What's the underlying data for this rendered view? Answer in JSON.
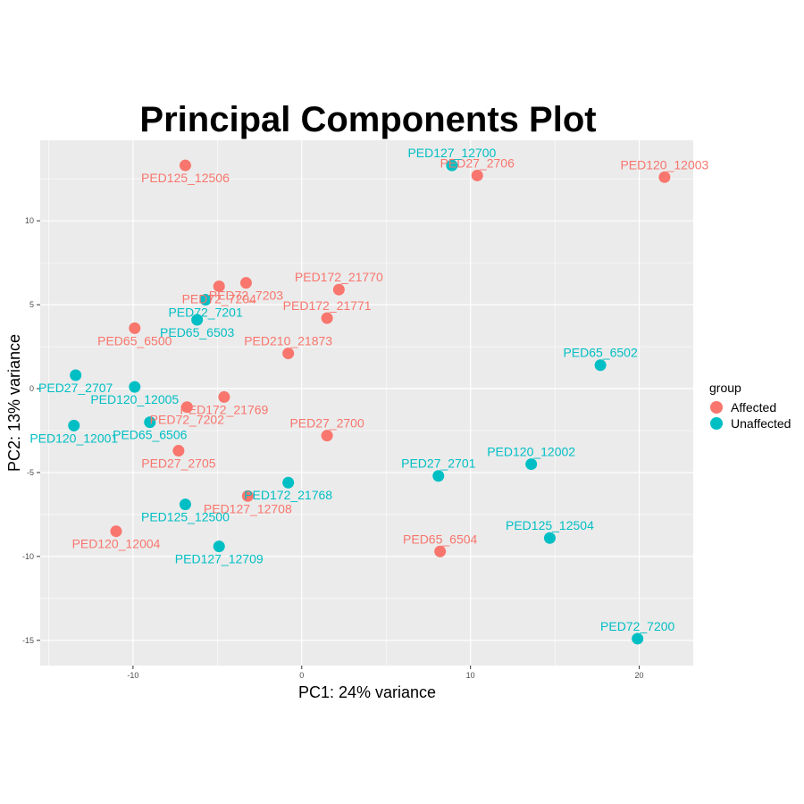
{
  "chart_data": {
    "type": "scatter",
    "title": "Principal Components Plot",
    "xlabel": "PC1: 24% variance",
    "ylabel": "PC2: 13% variance",
    "xlim": [
      -15.5,
      23.2
    ],
    "ylim": [
      -16.5,
      14.8
    ],
    "x_ticks": [
      -10,
      0,
      10,
      20
    ],
    "y_ticks": [
      -15,
      -10,
      -5,
      0,
      5,
      10
    ],
    "grid": true,
    "legend_position": "right",
    "legend": {
      "title": "group",
      "entries": [
        {
          "name": "Affected",
          "color": "#F8766D"
        },
        {
          "name": "Unaffected",
          "color": "#00BFC4"
        }
      ]
    },
    "series": [
      {
        "name": "Affected",
        "color": "#F8766D",
        "points": [
          {
            "label": "PED125_12506",
            "x": -6.9,
            "y": 13.3
          },
          {
            "label": "PED27_2706",
            "x": 10.4,
            "y": 12.7
          },
          {
            "label": "PED120_12003",
            "x": 21.5,
            "y": 12.6
          },
          {
            "label": "PED72_7203",
            "x": -3.3,
            "y": 6.3
          },
          {
            "label": "PED72_7204",
            "x": -4.9,
            "y": 6.1
          },
          {
            "label": "PED172_21770",
            "x": 2.2,
            "y": 5.9
          },
          {
            "label": "PED172_21771",
            "x": 1.5,
            "y": 4.2
          },
          {
            "label": "PED65_6500",
            "x": -9.9,
            "y": 3.6
          },
          {
            "label": "PED210_21873",
            "x": -0.8,
            "y": 2.1
          },
          {
            "label": "PED172_21769",
            "x": -4.6,
            "y": -0.5
          },
          {
            "label": "PED72_7202",
            "x": -6.8,
            "y": -1.1
          },
          {
            "label": "PED27_2700",
            "x": 1.5,
            "y": -2.8
          },
          {
            "label": "PED27_2705",
            "x": -7.3,
            "y": -3.7
          },
          {
            "label": "PED127_12708",
            "x": -3.2,
            "y": -6.4
          },
          {
            "label": "PED120_12004",
            "x": -11.0,
            "y": -8.5
          },
          {
            "label": "PED65_6504",
            "x": 8.2,
            "y": -9.7
          }
        ]
      },
      {
        "name": "Unaffected",
        "color": "#00BFC4",
        "points": [
          {
            "label": "PED127_12700",
            "x": 8.9,
            "y": 13.3
          },
          {
            "label": "PED72_7201",
            "x": -5.7,
            "y": 5.3
          },
          {
            "label": "PED65_6503",
            "x": -6.2,
            "y": 4.1
          },
          {
            "label": "PED65_6502",
            "x": 17.7,
            "y": 1.4
          },
          {
            "label": "PED27_2707",
            "x": -13.4,
            "y": 0.8
          },
          {
            "label": "PED120_12005",
            "x": -9.9,
            "y": 0.1
          },
          {
            "label": "PED65_6506",
            "x": -9.0,
            "y": -2.0
          },
          {
            "label": "PED120_12001",
            "x": -13.5,
            "y": -2.2
          },
          {
            "label": "PED120_12002",
            "x": 13.6,
            "y": -4.5
          },
          {
            "label": "PED27_2701",
            "x": 8.1,
            "y": -5.2
          },
          {
            "label": "PED172_21768",
            "x": -0.8,
            "y": -5.6
          },
          {
            "label": "PED125_12500",
            "x": -6.9,
            "y": -6.9
          },
          {
            "label": "PED125_12504",
            "x": 14.7,
            "y": -8.9
          },
          {
            "label": "PED127_12709",
            "x": -4.9,
            "y": -9.4
          },
          {
            "label": "PED72_7200",
            "x": 19.9,
            "y": -14.9
          }
        ]
      }
    ]
  }
}
